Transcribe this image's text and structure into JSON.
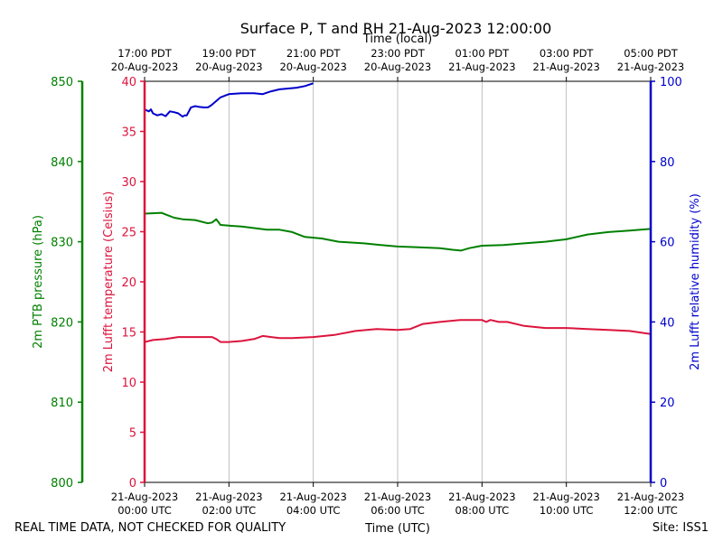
{
  "chart_data": {
    "type": "line",
    "title": "Surface P, T and RH 21-Aug-2023 12:00:00",
    "xlabel_bottom": "Time (UTC)",
    "xlabel_top": "Time (local)",
    "footer_left": "REAL TIME DATA, NOT CHECKED FOR QUALITY",
    "footer_right": "Site: ISS1",
    "x_range_hours_utc": [
      0,
      12
    ],
    "bottom_ticks": [
      {
        "hour": 0,
        "line1": "21-Aug-2023",
        "line2": "00:00 UTC"
      },
      {
        "hour": 2,
        "line1": "21-Aug-2023",
        "line2": "02:00 UTC"
      },
      {
        "hour": 4,
        "line1": "21-Aug-2023",
        "line2": "04:00 UTC"
      },
      {
        "hour": 6,
        "line1": "21-Aug-2023",
        "line2": "06:00 UTC"
      },
      {
        "hour": 8,
        "line1": "21-Aug-2023",
        "line2": "08:00 UTC"
      },
      {
        "hour": 10,
        "line1": "21-Aug-2023",
        "line2": "10:00 UTC"
      },
      {
        "hour": 12,
        "line1": "21-Aug-2023",
        "line2": "12:00 UTC"
      }
    ],
    "top_ticks": [
      {
        "hour": 0,
        "line1": "17:00 PDT",
        "line2": "20-Aug-2023"
      },
      {
        "hour": 2,
        "line1": "19:00 PDT",
        "line2": "20-Aug-2023"
      },
      {
        "hour": 4,
        "line1": "21:00 PDT",
        "line2": "20-Aug-2023"
      },
      {
        "hour": 6,
        "line1": "23:00 PDT",
        "line2": "20-Aug-2023"
      },
      {
        "hour": 8,
        "line1": "01:00 PDT",
        "line2": "21-Aug-2023"
      },
      {
        "hour": 10,
        "line1": "03:00 PDT",
        "line2": "21-Aug-2023"
      },
      {
        "hour": 12,
        "line1": "05:00 PDT",
        "line2": "21-Aug-2023"
      }
    ],
    "vertical_grid": true,
    "axes": {
      "pressure": {
        "label": "2m PTB pressure (hPa)",
        "range": [
          800,
          850
        ],
        "ticks": [
          800,
          810,
          820,
          830,
          840,
          850
        ],
        "color": "#008000"
      },
      "temperature": {
        "label": "2m Lufft temperature (Celsius)",
        "range": [
          0,
          40
        ],
        "ticks": [
          0,
          5,
          10,
          15,
          20,
          25,
          30,
          35,
          40
        ],
        "color": "#dc143c"
      },
      "humidity": {
        "label": "2m Lufft relative humidity (%)",
        "range": [
          0,
          100
        ],
        "ticks": [
          0,
          20,
          40,
          60,
          80,
          100
        ],
        "color": "#0000cd"
      }
    },
    "series": [
      {
        "axis": "pressure",
        "color": "#008000",
        "x": [
          0,
          0.4,
          0.5,
          0.7,
          0.9,
          1.2,
          1.5,
          1.6,
          1.7,
          1.8,
          2.0,
          2.3,
          2.6,
          2.9,
          3.2,
          3.5,
          3.8,
          4.2,
          4.6,
          4.9,
          5.2,
          5.6,
          6.0,
          6.5,
          7.0,
          7.3,
          7.5,
          7.7,
          7.9,
          8.0,
          8.5,
          9.0,
          9.5,
          10.0,
          10.5,
          11.0,
          11.5,
          12.0
        ],
        "values": [
          833.5,
          833.6,
          833.4,
          833.0,
          832.8,
          832.7,
          832.3,
          832.4,
          832.8,
          832.1,
          832.0,
          831.9,
          831.7,
          831.5,
          831.5,
          831.2,
          830.6,
          830.4,
          830.0,
          829.9,
          829.8,
          829.6,
          829.4,
          829.3,
          829.2,
          829.0,
          828.9,
          829.2,
          829.4,
          829.5,
          829.6,
          829.8,
          830.0,
          830.3,
          830.9,
          831.2,
          831.4,
          831.6
        ]
      },
      {
        "axis": "temperature",
        "color": "#dc143c",
        "x": [
          0,
          0.2,
          0.5,
          0.8,
          1.0,
          1.3,
          1.6,
          1.7,
          1.8,
          2.0,
          2.3,
          2.6,
          2.8,
          3.0,
          3.2,
          3.5,
          4.0,
          4.5,
          5.0,
          5.5,
          6.0,
          6.3,
          6.6,
          7.0,
          7.5,
          8.0,
          8.1,
          8.2,
          8.4,
          8.6,
          9.0,
          9.5,
          10.0,
          10.5,
          11.0,
          11.5,
          12.0
        ],
        "values": [
          14.0,
          14.2,
          14.3,
          14.5,
          14.5,
          14.5,
          14.5,
          14.3,
          14.0,
          14.0,
          14.1,
          14.3,
          14.6,
          14.5,
          14.4,
          14.4,
          14.5,
          14.7,
          15.1,
          15.3,
          15.2,
          15.3,
          15.8,
          16.0,
          16.2,
          16.2,
          16.0,
          16.2,
          16.0,
          16.0,
          15.6,
          15.4,
          15.4,
          15.3,
          15.2,
          15.1,
          14.8
        ]
      },
      {
        "axis": "humidity",
        "color": "#0000cd",
        "x": [
          0,
          0.1,
          0.15,
          0.2,
          0.3,
          0.4,
          0.5,
          0.6,
          0.7,
          0.8,
          0.9,
          0.95,
          1.0,
          1.1,
          1.2,
          1.3,
          1.4,
          1.5,
          1.55,
          1.6,
          1.8,
          2.0,
          2.3,
          2.6,
          2.8,
          3.0,
          3.2,
          3.4,
          3.6,
          3.8,
          4.0
        ],
        "values": [
          93.0,
          92.5,
          93.0,
          92.0,
          91.5,
          91.8,
          91.3,
          92.5,
          92.3,
          92.0,
          91.2,
          91.5,
          91.5,
          93.5,
          93.8,
          93.6,
          93.5,
          93.5,
          93.8,
          94.2,
          96.0,
          96.8,
          97.0,
          97.0,
          96.8,
          97.5,
          98.0,
          98.2,
          98.4,
          98.8,
          99.5
        ]
      }
    ]
  }
}
